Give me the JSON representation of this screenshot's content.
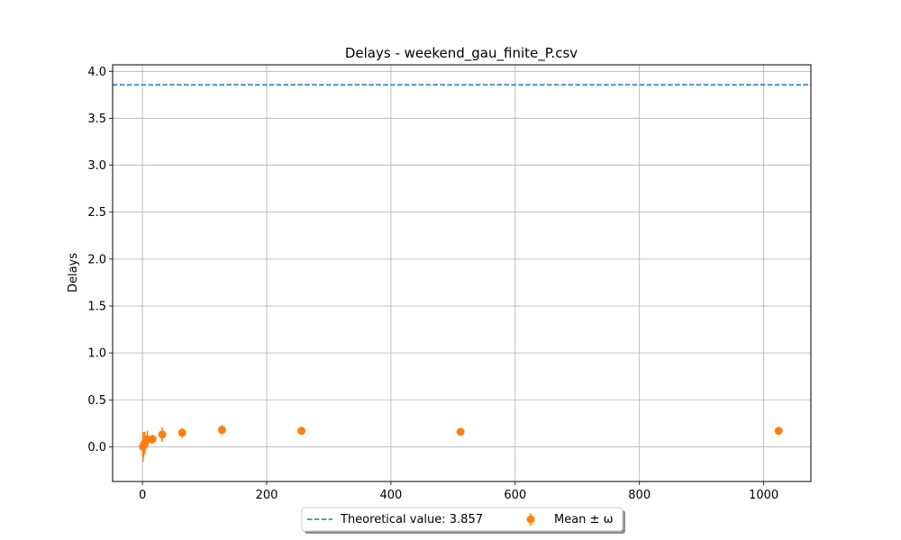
{
  "chart_data": {
    "type": "scatter",
    "title": "Delays - weekend_gau_finite_P.csv",
    "xlabel": "",
    "ylabel": "Delays",
    "xlim": [
      -48,
      1076
    ],
    "ylim": [
      -0.37,
      4.07
    ],
    "xticks": [
      0,
      200,
      400,
      600,
      800,
      1000
    ],
    "yticks": [
      0.0,
      0.5,
      1.0,
      1.5,
      2.0,
      2.5,
      3.0,
      3.5,
      4.0
    ],
    "grid": true,
    "legend_position": "bottom-center",
    "theoretical": {
      "label": "Theoretical value: 3.857",
      "value": 3.857,
      "color": "#1f77b4"
    },
    "series": [
      {
        "name": "Mean ± ω",
        "color": "#ff7f0e",
        "x": [
          1,
          2,
          4,
          8,
          16,
          32,
          64,
          128,
          256,
          512,
          1024
        ],
        "y": [
          0.0,
          0.02,
          0.04,
          0.08,
          0.08,
          0.13,
          0.15,
          0.18,
          0.17,
          0.16,
          0.17
        ],
        "err": [
          0.16,
          0.13,
          0.12,
          0.09,
          0.05,
          0.08,
          0.05,
          0.05,
          0.02,
          0.02,
          0.02
        ]
      }
    ]
  }
}
